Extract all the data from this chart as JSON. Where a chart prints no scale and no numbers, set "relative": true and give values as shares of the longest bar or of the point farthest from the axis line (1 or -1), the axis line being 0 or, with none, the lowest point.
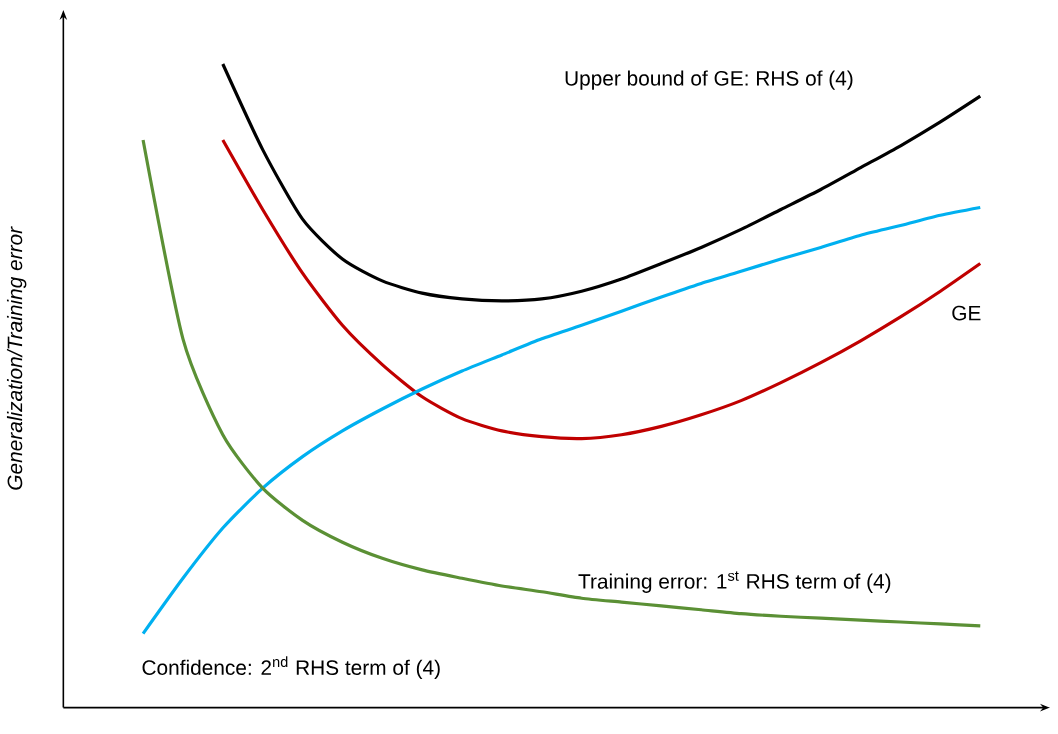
{
  "chart_data": {
    "type": "line",
    "relative": true,
    "ylabel": "Generalization/Training error",
    "marker": "none",
    "line_style": "solid",
    "categories": [
      null,
      null,
      null,
      null,
      null,
      null,
      null,
      null,
      null,
      null,
      null,
      null,
      null,
      null,
      null,
      null,
      null,
      null,
      null,
      null,
      null,
      null
    ],
    "series": [
      {
        "color": "#000000",
        "values": [
          null,
          null,
          1.0,
          0.867,
          0.759,
          0.697,
          0.663,
          0.644,
          0.635,
          0.632,
          0.635,
          0.647,
          0.666,
          0.69,
          0.715,
          0.743,
          0.774,
          0.805,
          0.839,
          0.873,
          0.91,
          0.95
        ]
      },
      {
        "color": "#c00000",
        "values": [
          null,
          null,
          0.882,
          0.774,
          0.675,
          0.594,
          0.533,
          0.483,
          0.449,
          0.43,
          0.421,
          0.418,
          0.424,
          0.437,
          0.455,
          0.477,
          0.505,
          0.536,
          0.57,
          0.607,
          0.647,
          0.69
        ]
      },
      {
        "color": "#00b0f0",
        "values": [
          0.115,
          0.201,
          0.279,
          0.341,
          0.39,
          0.43,
          0.464,
          0.495,
          0.523,
          0.548,
          0.573,
          0.594,
          0.616,
          0.638,
          0.659,
          0.678,
          0.697,
          0.715,
          0.734,
          0.749,
          0.765,
          0.777
        ]
      },
      {
        "color": "#5b9035",
        "values": [
          0.882,
          0.573,
          0.424,
          0.341,
          0.291,
          0.257,
          0.232,
          0.214,
          0.201,
          0.189,
          0.18,
          0.17,
          0.164,
          0.158,
          0.152,
          0.146,
          0.142,
          0.139,
          0.136,
          0.133,
          0.13,
          0.127
        ]
      }
    ],
    "annotations": [
      "Upper bound of GE: RHS of (4)",
      "GE",
      "Training error: 1$^{st}$ RHS term of (4)",
      "Confidence: 2$^{nd}$ RHS term of (4)"
    ]
  }
}
